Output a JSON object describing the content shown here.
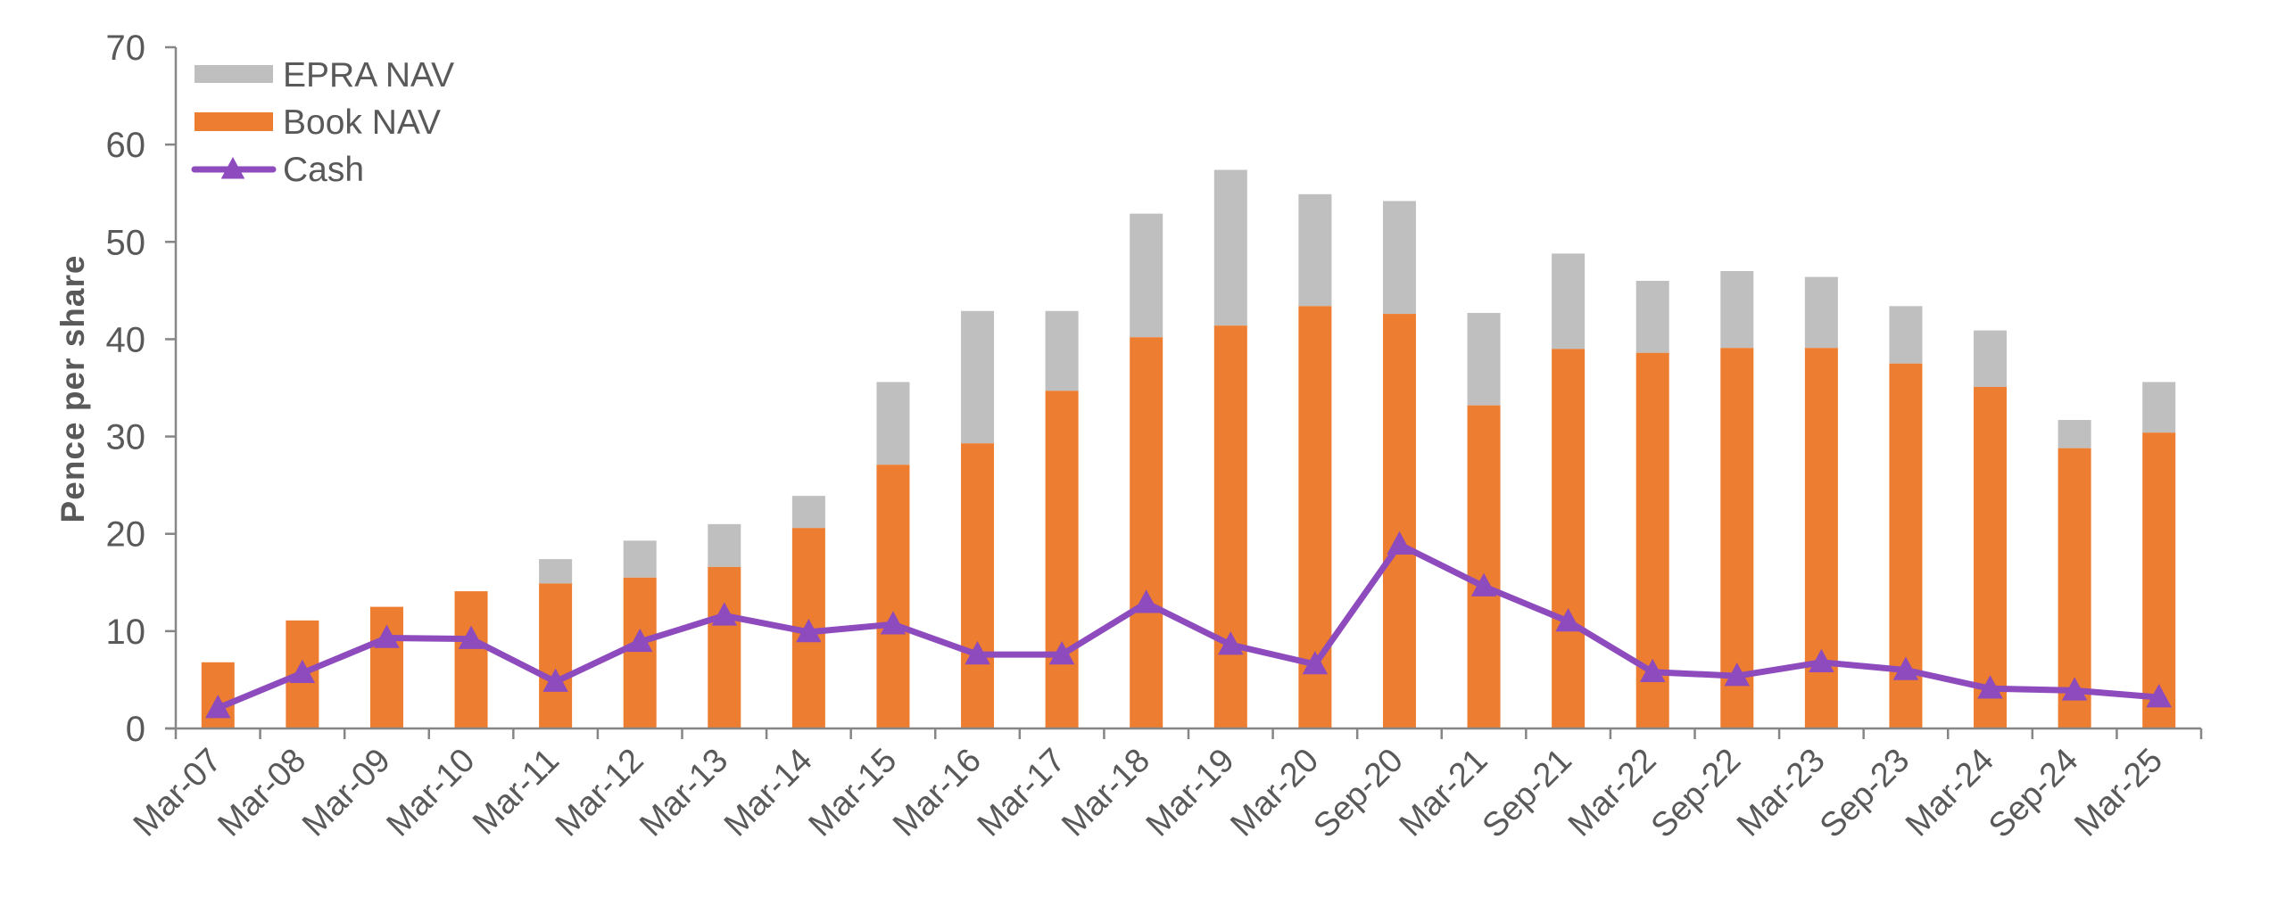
{
  "chart_data": {
    "type": "bar",
    "subtype": "stacked-bar-with-line",
    "title": "",
    "xlabel": "",
    "ylabel": "Pence per share",
    "ylim": [
      0,
      70
    ],
    "yticks": [
      0,
      10,
      20,
      30,
      40,
      50,
      60,
      70
    ],
    "grid": false,
    "legend_position": "top-left",
    "categories": [
      "Mar-07",
      "Mar-08",
      "Mar-09",
      "Mar-10",
      "Mar-11",
      "Mar-12",
      "Mar-13",
      "Mar-14",
      "Mar-15",
      "Mar-16",
      "Mar-17",
      "Mar-18",
      "Mar-19",
      "Mar-20",
      "Sep-20",
      "Mar-21",
      "Sep-21",
      "Mar-22",
      "Sep-22",
      "Mar-23",
      "Sep-23",
      "Mar-24",
      "Sep-24",
      "Mar-25"
    ],
    "series": [
      {
        "name": "Book NAV",
        "kind": "bar",
        "color": "#ED7D31",
        "values": [
          6.8,
          11.1,
          12.5,
          14.1,
          14.9,
          15.5,
          16.6,
          20.6,
          27.1,
          29.3,
          34.7,
          40.2,
          41.4,
          43.4,
          42.6,
          33.2,
          39.0,
          38.6,
          39.1,
          39.1,
          37.5,
          35.1,
          28.8,
          30.4
        ]
      },
      {
        "name": "EPRA NAV",
        "kind": "bar-total",
        "color": "#BFBFBF",
        "values": [
          6.8,
          11.1,
          12.5,
          14.1,
          17.4,
          19.3,
          21.0,
          23.9,
          35.6,
          42.9,
          42.9,
          52.9,
          57.4,
          54.9,
          54.2,
          42.7,
          48.8,
          46.0,
          47.0,
          46.4,
          43.4,
          40.9,
          31.7,
          35.6
        ]
      },
      {
        "name": "Cash",
        "kind": "line",
        "marker": "triangle",
        "color": "#8E4BBD",
        "values": [
          2.1,
          5.7,
          9.3,
          9.2,
          4.8,
          8.9,
          11.6,
          9.9,
          10.7,
          7.6,
          7.6,
          12.9,
          8.6,
          6.6,
          18.9,
          14.6,
          11.0,
          5.8,
          5.4,
          6.8,
          6.0,
          4.1,
          3.9,
          3.2
        ]
      }
    ],
    "legend": [
      {
        "label": "EPRA NAV",
        "symbol": "box",
        "color": "#BFBFBF"
      },
      {
        "label": "Book NAV",
        "symbol": "box",
        "color": "#ED7D31"
      },
      {
        "label": "Cash",
        "symbol": "line-triangle",
        "color": "#8E4BBD"
      }
    ],
    "axis_color": "#868686",
    "text_color": "#595959"
  }
}
